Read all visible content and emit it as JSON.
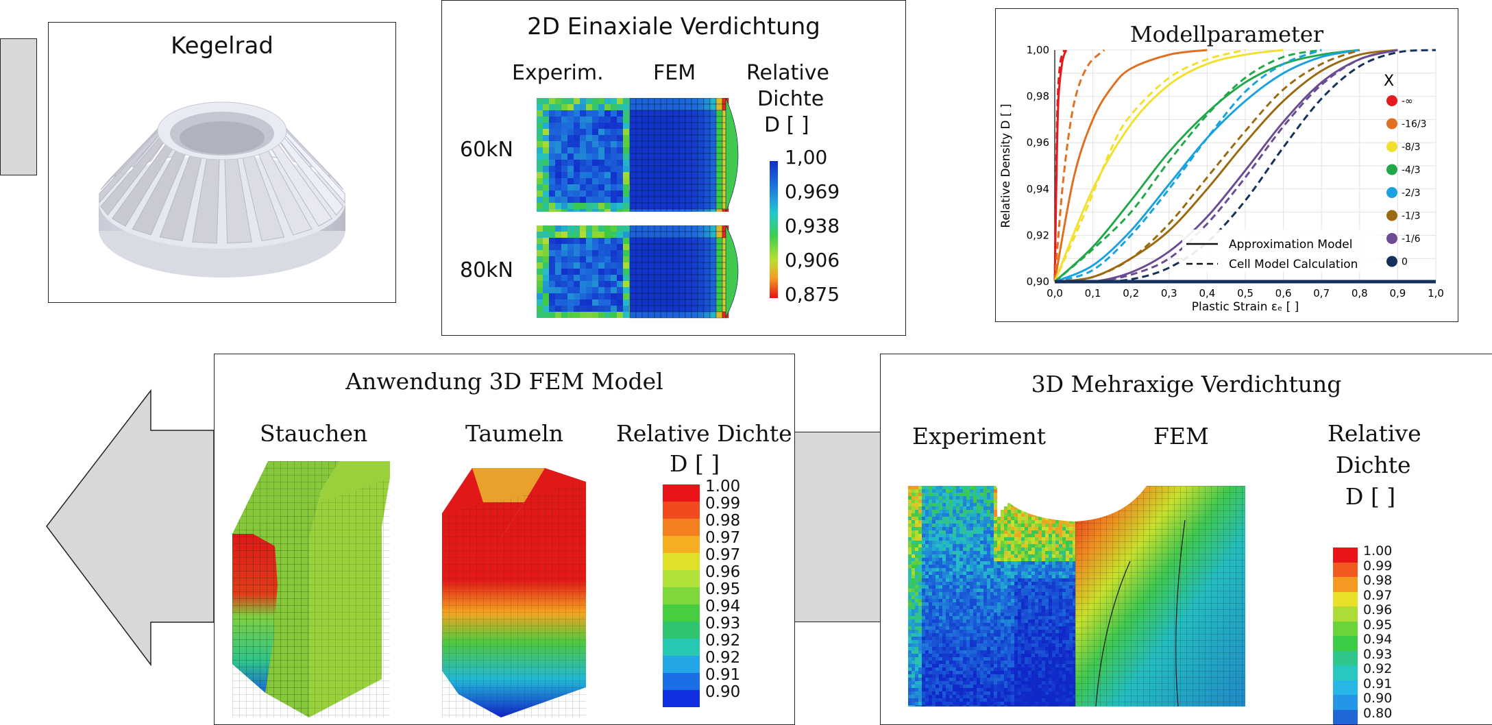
{
  "kegelrad": {
    "title": "Kegelrad"
  },
  "einaxial": {
    "title": "2D Einaxiale Verdichtung",
    "col_experim": "Experim.",
    "col_fem": "FEM",
    "legend_title": [
      "Relative",
      "Dichte",
      "D [ ]"
    ],
    "row_60": "60kN",
    "row_80": "80kN",
    "legend_values": [
      "1,00",
      "0,969",
      "0,938",
      "0,906",
      "0,875"
    ]
  },
  "modell": {
    "title": "Modellparameter",
    "chart_data": {
      "type": "line",
      "title": "Modellparameter",
      "xlabel": "Plastic Strain εₑ [ ]",
      "ylabel": "Relative Density D [ ]",
      "xlim": [
        0,
        1
      ],
      "ylim": [
        0.9,
        1.0
      ],
      "x_ticks": [
        "0,0",
        "0,1",
        "0,2",
        "0,3",
        "0,4",
        "0,5",
        "0,6",
        "0,7",
        "0,8",
        "0,9",
        "1,0"
      ],
      "y_ticks": [
        "0,90",
        "0,92",
        "0,94",
        "0,96",
        "0,98",
        "1,00"
      ],
      "grid": true,
      "legend_title": "X",
      "legend_position": "right",
      "line_styles": [
        {
          "label": "Approximation Model",
          "dash": "solid"
        },
        {
          "label": "Cell Model Calculation",
          "dash": "dashed"
        }
      ],
      "series": [
        {
          "name": "-∞",
          "color": "#e41a1c",
          "approx": [
            [
              0,
              0.9
            ],
            [
              0.005,
              0.95
            ],
            [
              0.01,
              0.98
            ],
            [
              0.02,
              0.995
            ],
            [
              0.03,
              1.0
            ]
          ],
          "cell": [
            [
              0,
              0.9
            ],
            [
              0.004,
              0.95
            ],
            [
              0.008,
              0.98
            ],
            [
              0.015,
              0.995
            ],
            [
              0.025,
              1.0
            ]
          ]
        },
        {
          "name": "-16/3",
          "color": "#e07020",
          "approx": [
            [
              0,
              0.9
            ],
            [
              0.05,
              0.945
            ],
            [
              0.1,
              0.97
            ],
            [
              0.15,
              0.984
            ],
            [
              0.2,
              0.992
            ],
            [
              0.3,
              0.998
            ],
            [
              0.4,
              1.0
            ]
          ],
          "cell": [
            [
              0,
              0.9
            ],
            [
              0.02,
              0.94
            ],
            [
              0.04,
              0.967
            ],
            [
              0.06,
              0.983
            ],
            [
              0.09,
              0.994
            ],
            [
              0.13,
              1.0
            ]
          ]
        },
        {
          "name": "-8/3",
          "color": "#f2e030",
          "approx": [
            [
              0,
              0.9
            ],
            [
              0.1,
              0.94
            ],
            [
              0.2,
              0.968
            ],
            [
              0.3,
              0.985
            ],
            [
              0.4,
              0.994
            ],
            [
              0.5,
              0.998
            ],
            [
              0.6,
              1.0
            ]
          ],
          "cell": [
            [
              0,
              0.9
            ],
            [
              0.08,
              0.93
            ],
            [
              0.15,
              0.958
            ],
            [
              0.2,
              0.972
            ],
            [
              0.3,
              0.988
            ],
            [
              0.4,
              0.996
            ],
            [
              0.5,
              1.0
            ]
          ]
        },
        {
          "name": "-4/3",
          "color": "#22a84a",
          "approx": [
            [
              0,
              0.9
            ],
            [
              0.1,
              0.915
            ],
            [
              0.2,
              0.935
            ],
            [
              0.3,
              0.956
            ],
            [
              0.4,
              0.973
            ],
            [
              0.5,
              0.986
            ],
            [
              0.6,
              0.994
            ],
            [
              0.7,
              0.998
            ],
            [
              0.8,
              1.0
            ]
          ],
          "cell": [
            [
              0,
              0.9
            ],
            [
              0.1,
              0.914
            ],
            [
              0.2,
              0.93
            ],
            [
              0.3,
              0.952
            ],
            [
              0.4,
              0.972
            ],
            [
              0.5,
              0.988
            ],
            [
              0.6,
              0.997
            ],
            [
              0.7,
              1.0
            ]
          ]
        },
        {
          "name": "-2/3",
          "color": "#1aa2e0",
          "approx": [
            [
              0,
              0.9
            ],
            [
              0.1,
              0.907
            ],
            [
              0.2,
              0.922
            ],
            [
              0.3,
              0.942
            ],
            [
              0.4,
              0.962
            ],
            [
              0.5,
              0.978
            ],
            [
              0.6,
              0.99
            ],
            [
              0.7,
              0.997
            ],
            [
              0.8,
              1.0
            ]
          ],
          "cell": [
            [
              0,
              0.9
            ],
            [
              0.1,
              0.905
            ],
            [
              0.2,
              0.92
            ],
            [
              0.3,
              0.94
            ],
            [
              0.4,
              0.962
            ],
            [
              0.5,
              0.982
            ],
            [
              0.6,
              0.994
            ],
            [
              0.7,
              1.0
            ]
          ]
        },
        {
          "name": "-1/3",
          "color": "#9a6a10",
          "approx": [
            [
              0,
              0.9
            ],
            [
              0.1,
              0.902
            ],
            [
              0.2,
              0.91
            ],
            [
              0.3,
              0.922
            ],
            [
              0.4,
              0.94
            ],
            [
              0.5,
              0.96
            ],
            [
              0.6,
              0.978
            ],
            [
              0.7,
              0.991
            ],
            [
              0.8,
              0.998
            ],
            [
              0.9,
              1.0
            ]
          ],
          "cell": [
            [
              0,
              0.9
            ],
            [
              0.1,
              0.902
            ],
            [
              0.2,
              0.91
            ],
            [
              0.3,
              0.925
            ],
            [
              0.4,
              0.945
            ],
            [
              0.5,
              0.965
            ],
            [
              0.6,
              0.983
            ],
            [
              0.7,
              0.994
            ],
            [
              0.8,
              1.0
            ]
          ]
        },
        {
          "name": "-1/6",
          "color": "#6a4c93",
          "approx": [
            [
              0,
              0.9
            ],
            [
              0.1,
              0.9
            ],
            [
              0.2,
              0.904
            ],
            [
              0.3,
              0.913
            ],
            [
              0.4,
              0.928
            ],
            [
              0.5,
              0.948
            ],
            [
              0.6,
              0.969
            ],
            [
              0.7,
              0.986
            ],
            [
              0.8,
              0.996
            ],
            [
              0.9,
              1.0
            ]
          ],
          "cell": [
            [
              0,
              0.9
            ],
            [
              0.1,
              0.9
            ],
            [
              0.2,
              0.903
            ],
            [
              0.3,
              0.91
            ],
            [
              0.4,
              0.925
            ],
            [
              0.5,
              0.945
            ],
            [
              0.6,
              0.967
            ],
            [
              0.7,
              0.985
            ],
            [
              0.8,
              0.996
            ],
            [
              0.9,
              1.0
            ]
          ]
        },
        {
          "name": "0",
          "color": "#15305a",
          "approx": [
            [
              0,
              0.9
            ],
            [
              1.0,
              0.9
            ]
          ],
          "cell": [
            [
              0,
              0.9
            ],
            [
              0.1,
              0.9
            ],
            [
              0.2,
              0.901
            ],
            [
              0.3,
              0.906
            ],
            [
              0.4,
              0.917
            ],
            [
              0.5,
              0.935
            ],
            [
              0.6,
              0.958
            ],
            [
              0.7,
              0.979
            ],
            [
              0.8,
              0.993
            ],
            [
              0.9,
              0.999
            ],
            [
              1.0,
              1.0
            ]
          ]
        }
      ]
    }
  },
  "anwendung": {
    "title": "Anwendung 3D FEM Model",
    "label_stauchen": "Stauchen",
    "label_taumeln": "Taumeln",
    "legend_title": "Relative  Dichte",
    "legend_unit": "D [ ]",
    "legend_values": [
      "1.00",
      "0.99",
      "0.98",
      "0.97",
      "0.97",
      "0.96",
      "0.95",
      "0.94",
      "0.93",
      "0.92",
      "0.92",
      "0.91",
      "0.90"
    ],
    "legend_colors": [
      "#e8141a",
      "#f04a1e",
      "#f47f20",
      "#f6ae23",
      "#dfe02a",
      "#b2e23a",
      "#7ed83c",
      "#48cc40",
      "#2ec56e",
      "#26c8b2",
      "#22a6e6",
      "#1a6ee6",
      "#1030e0"
    ]
  },
  "mehraxig": {
    "title": "3D Mehraxige Verdichtung",
    "label_experiment": "Experiment",
    "label_fem": "FEM",
    "legend_title": [
      "Relative",
      "Dichte",
      "D [ ]"
    ],
    "legend_values": [
      "1.00",
      "0.99",
      "0.98",
      "0.97",
      "0.96",
      "0.95",
      "0.94",
      "0.93",
      "0.92",
      "0.91",
      "0.90",
      "0.80"
    ],
    "legend_colors": [
      "#e8141a",
      "#f05a1e",
      "#f49a22",
      "#e9e02a",
      "#aedc36",
      "#6ad43a",
      "#3ccc46",
      "#2ec68a",
      "#28c8c0",
      "#28b6e6",
      "#2496e6",
      "#2068d8"
    ]
  }
}
